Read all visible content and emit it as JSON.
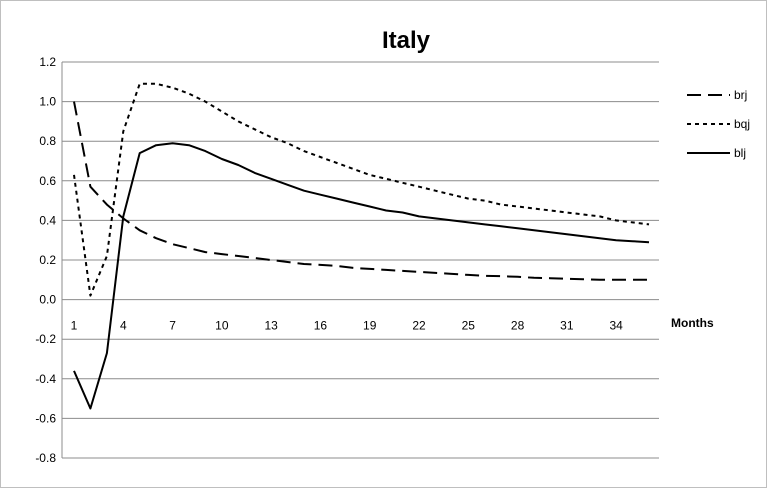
{
  "chart_data": {
    "type": "line",
    "title": "Italy",
    "xlabel": "Months",
    "ylabel": "",
    "x": [
      1,
      2,
      3,
      4,
      5,
      6,
      7,
      8,
      9,
      10,
      11,
      12,
      13,
      14,
      15,
      16,
      17,
      18,
      19,
      20,
      21,
      22,
      23,
      24,
      25,
      26,
      27,
      28,
      29,
      30,
      31,
      32,
      33,
      34,
      35,
      36
    ],
    "x_tick_labels": [
      "1",
      "4",
      "7",
      "10",
      "13",
      "16",
      "19",
      "22",
      "25",
      "28",
      "31",
      "34"
    ],
    "y_tick_labels": [
      "1.2",
      "1.0",
      "0.8",
      "0.6",
      "0.4",
      "0.2",
      "0.0",
      "-0.2",
      "-0.4",
      "-0.6",
      "-0.8"
    ],
    "ylim": [
      -0.8,
      1.2
    ],
    "xlim": [
      1,
      36
    ],
    "grid": true,
    "legend_position": "right",
    "series": [
      {
        "name": "brj",
        "style": "long-dash",
        "color": "#000000",
        "values": [
          1.0,
          0.57,
          0.48,
          0.41,
          0.35,
          0.31,
          0.28,
          0.26,
          0.24,
          0.23,
          0.22,
          0.21,
          0.2,
          0.19,
          0.18,
          0.175,
          0.17,
          0.16,
          0.155,
          0.15,
          0.145,
          0.14,
          0.135,
          0.13,
          0.125,
          0.12,
          0.118,
          0.115,
          0.11,
          0.108,
          0.105,
          0.103,
          0.1,
          0.1,
          0.1,
          0.1
        ]
      },
      {
        "name": "bqj",
        "style": "dotted",
        "color": "#000000",
        "values": [
          0.63,
          0.02,
          0.22,
          0.85,
          1.09,
          1.09,
          1.07,
          1.04,
          1.0,
          0.95,
          0.9,
          0.86,
          0.82,
          0.79,
          0.75,
          0.72,
          0.69,
          0.66,
          0.63,
          0.61,
          0.59,
          0.57,
          0.55,
          0.53,
          0.51,
          0.5,
          0.48,
          0.47,
          0.46,
          0.45,
          0.44,
          0.43,
          0.42,
          0.4,
          0.39,
          0.38
        ]
      },
      {
        "name": "blj",
        "style": "solid",
        "color": "#000000",
        "values": [
          -0.36,
          -0.55,
          -0.27,
          0.42,
          0.74,
          0.78,
          0.79,
          0.78,
          0.75,
          0.71,
          0.68,
          0.64,
          0.61,
          0.58,
          0.55,
          0.53,
          0.51,
          0.49,
          0.47,
          0.45,
          0.44,
          0.42,
          0.41,
          0.4,
          0.39,
          0.38,
          0.37,
          0.36,
          0.35,
          0.34,
          0.33,
          0.32,
          0.31,
          0.3,
          0.295,
          0.29
        ]
      }
    ]
  }
}
